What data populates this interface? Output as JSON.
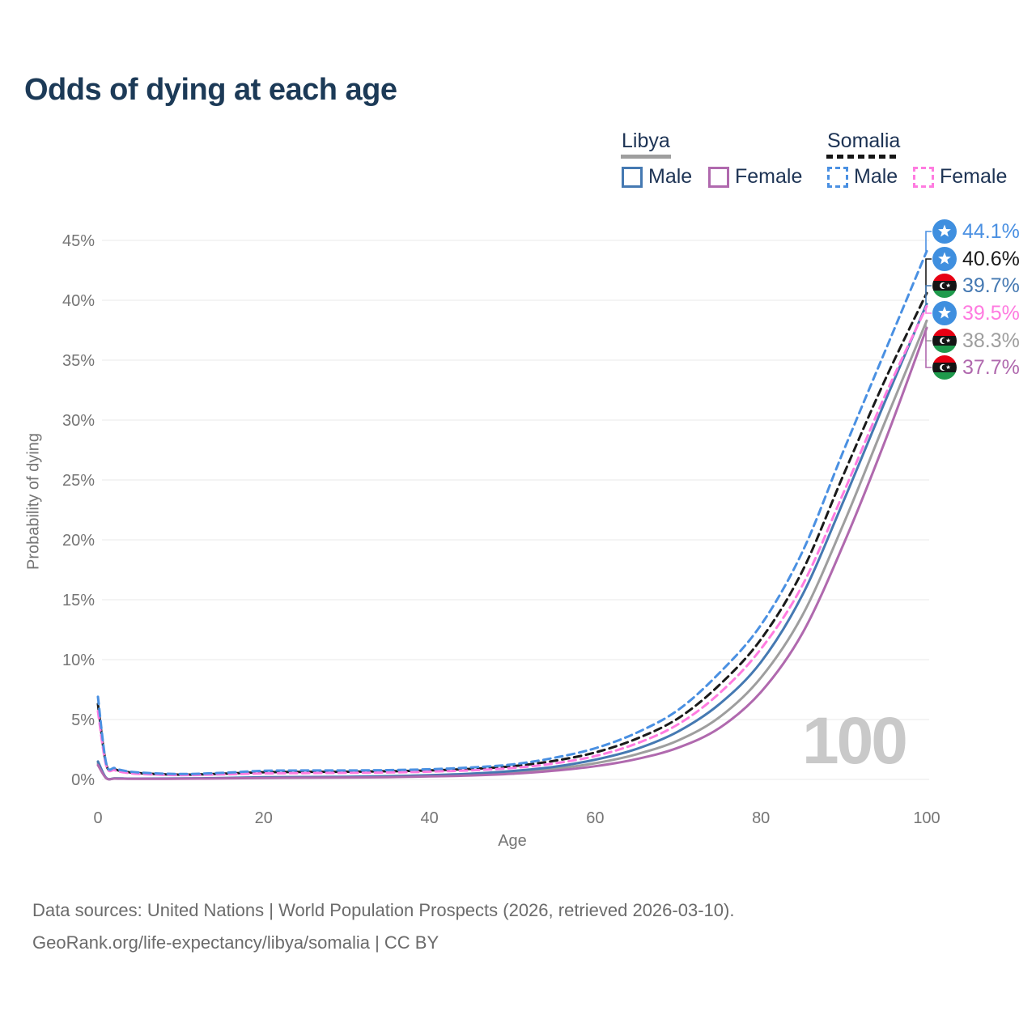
{
  "title": "Odds of dying at each age",
  "legend": {
    "groups": [
      {
        "label": "Libya",
        "line_style": "solid",
        "underline_color": "#9e9e9e",
        "items": [
          {
            "label": "Male",
            "color": "#4579b2"
          },
          {
            "label": "Female",
            "color": "#b069ae"
          }
        ]
      },
      {
        "label": "Somalia",
        "line_style": "dashed",
        "underline_color": "#151515",
        "items": [
          {
            "label": "Male",
            "color": "#4a90e2"
          },
          {
            "label": "Female",
            "color": "#ff7be0"
          }
        ]
      }
    ]
  },
  "watermark": "100",
  "axes": {
    "x_label": "Age",
    "y_label": "Probability of dying"
  },
  "end_labels": [
    {
      "flag": "somalia",
      "value": "44.1%",
      "color": "#4a90e2"
    },
    {
      "flag": "somalia",
      "value": "40.6%",
      "color": "#1a1a1a"
    },
    {
      "flag": "libya",
      "value": "39.7%",
      "color": "#4579b2"
    },
    {
      "flag": "somalia",
      "value": "39.5%",
      "color": "#ff7be0"
    },
    {
      "flag": "libya",
      "value": "38.3%",
      "color": "#9e9e9e"
    },
    {
      "flag": "libya",
      "value": "37.7%",
      "color": "#b069ae"
    }
  ],
  "footer": {
    "line1": "Data sources: United Nations | World Population Prospects (2026, retrieved 2026-03-10).",
    "line2": "GeoRank.org/life-expectancy/libya/somalia | CC BY"
  },
  "chart_data": {
    "type": "line",
    "title": "Odds of dying at each age",
    "xlabel": "Age",
    "ylabel": "Probability of dying",
    "xlim": [
      0,
      100
    ],
    "ylim": [
      0,
      45
    ],
    "x_ticks": [
      0,
      20,
      40,
      60,
      80,
      100
    ],
    "y_ticks": [
      "0%",
      "5%",
      "10%",
      "15%",
      "20%",
      "25%",
      "30%",
      "35%",
      "40%",
      "45%"
    ],
    "grid": true,
    "legend_position": "top-right",
    "ages": [
      0,
      1,
      2,
      3,
      5,
      10,
      15,
      20,
      25,
      30,
      35,
      40,
      45,
      50,
      55,
      60,
      65,
      70,
      75,
      80,
      85,
      90,
      95,
      100
    ],
    "series": [
      {
        "name": "Libya — Both sexes",
        "country": "Libya",
        "sex": "both",
        "color": "#9e9e9e",
        "dashed": false,
        "final_value": 38.3,
        "end_label": "38.3%",
        "values": [
          1.35,
          0.11,
          0.08,
          0.07,
          0.06,
          0.07,
          0.1,
          0.15,
          0.17,
          0.19,
          0.23,
          0.3,
          0.4,
          0.58,
          0.88,
          1.35,
          2.1,
          3.25,
          5.2,
          8.5,
          13.7,
          21.4,
          29.9,
          38.3
        ]
      },
      {
        "name": "Libya — Male",
        "country": "Libya",
        "sex": "male",
        "color": "#4579b2",
        "dashed": false,
        "final_value": 39.7,
        "end_label": "39.7%",
        "values": [
          1.5,
          0.13,
          0.09,
          0.08,
          0.07,
          0.08,
          0.12,
          0.18,
          0.2,
          0.22,
          0.27,
          0.35,
          0.48,
          0.7,
          1.05,
          1.65,
          2.55,
          4.0,
          6.3,
          9.8,
          15.4,
          23.3,
          31.6,
          39.7
        ]
      },
      {
        "name": "Libya — Female",
        "country": "Libya",
        "sex": "female",
        "color": "#b069ae",
        "dashed": false,
        "final_value": 37.7,
        "end_label": "37.7%",
        "values": [
          1.2,
          0.1,
          0.07,
          0.06,
          0.05,
          0.06,
          0.08,
          0.12,
          0.14,
          0.16,
          0.19,
          0.25,
          0.33,
          0.47,
          0.72,
          1.1,
          1.7,
          2.65,
          4.3,
          7.3,
          12.2,
          19.7,
          28.3,
          37.7
        ]
      },
      {
        "name": "Somalia — Both sexes",
        "country": "Somalia",
        "sex": "both",
        "color": "#1a1a1a",
        "dashed": true,
        "final_value": 40.6,
        "end_label": "40.6%",
        "values": [
          6.3,
          1.25,
          0.85,
          0.68,
          0.52,
          0.4,
          0.48,
          0.6,
          0.63,
          0.64,
          0.68,
          0.75,
          0.88,
          1.1,
          1.55,
          2.25,
          3.4,
          5.1,
          7.9,
          11.7,
          17.4,
          25.5,
          33.4,
          40.6
        ]
      },
      {
        "name": "Somalia — Female",
        "country": "Somalia",
        "sex": "female",
        "color": "#ff7be0",
        "dashed": true,
        "final_value": 39.5,
        "end_label": "39.5%",
        "values": [
          5.7,
          1.15,
          0.78,
          0.6,
          0.46,
          0.36,
          0.42,
          0.5,
          0.53,
          0.55,
          0.58,
          0.65,
          0.76,
          0.95,
          1.33,
          1.95,
          3.0,
          4.6,
          7.2,
          10.9,
          16.2,
          24.0,
          32.1,
          39.5
        ]
      },
      {
        "name": "Somalia — Male",
        "country": "Somalia",
        "sex": "male",
        "color": "#4a90e2",
        "dashed": true,
        "final_value": 44.1,
        "end_label": "44.1%",
        "values": [
          6.9,
          1.35,
          0.95,
          0.75,
          0.58,
          0.45,
          0.55,
          0.72,
          0.75,
          0.75,
          0.78,
          0.85,
          1.0,
          1.25,
          1.8,
          2.6,
          3.9,
          5.8,
          8.9,
          12.9,
          19.0,
          27.5,
          35.8,
          44.1
        ]
      }
    ]
  }
}
